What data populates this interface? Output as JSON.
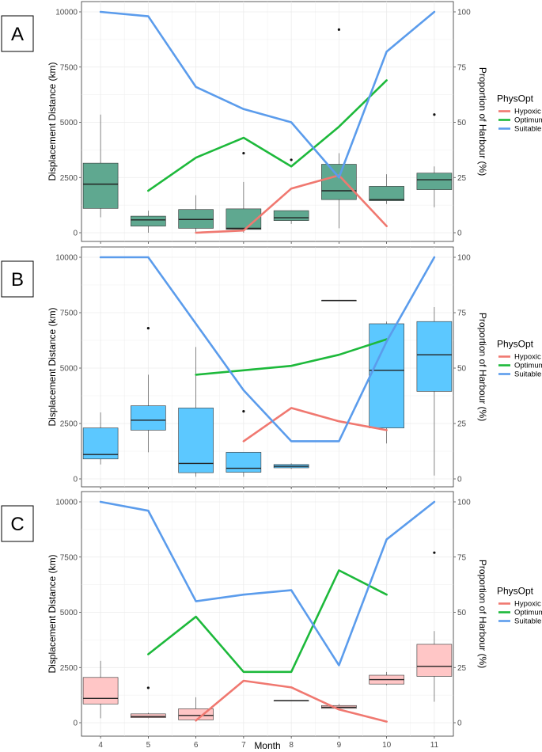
{
  "figure": {
    "x_axis_label": "Month",
    "legend_title": "PhysOpt",
    "series_colors": {
      "Hypoxic": "#F07870",
      "Optimum": "#1DB93B",
      "Suitable": "#5B9CEC"
    }
  },
  "chart_data": [
    {
      "panel_label": "A",
      "type": "boxplot_with_lines",
      "box_color": "#5FA890",
      "xlabel": "Month",
      "ylabel": "Displacement Distance (km)",
      "y2label": "Proportion of Harbour (%)",
      "ylim": [
        0,
        10000
      ],
      "y2lim": [
        0,
        100
      ],
      "x_ticks": [
        "4",
        "5",
        "6",
        "7",
        "8",
        "9",
        "10",
        "11"
      ],
      "y_ticks": [
        "0",
        "2500",
        "5000",
        "7500",
        "10000"
      ],
      "y2_ticks": [
        "0",
        "25",
        "50",
        "75",
        "100"
      ],
      "legend": [
        "Hypoxic",
        "Optimum",
        "Suitable"
      ],
      "boxes": [
        {
          "month": 4,
          "low": 700,
          "q1": 1100,
          "median": 2200,
          "q3": 3150,
          "high": 5350,
          "outliers": []
        },
        {
          "month": 5,
          "low": 0,
          "q1": 300,
          "median": 580,
          "q3": 750,
          "high": 1000,
          "outliers": []
        },
        {
          "month": 6,
          "low": 0,
          "q1": 200,
          "median": 600,
          "q3": 1050,
          "high": 1700,
          "outliers": []
        },
        {
          "month": 7,
          "low": 0,
          "q1": 150,
          "median": 200,
          "q3": 1080,
          "high": 2300,
          "outliers": [
            3600
          ]
        },
        {
          "month": 8,
          "low": 400,
          "q1": 550,
          "median": 680,
          "q3": 1000,
          "high": 1000,
          "outliers": [
            3300
          ]
        },
        {
          "month": 9,
          "low": 200,
          "q1": 1500,
          "median": 1900,
          "q3": 3100,
          "high": 3600,
          "outliers": [
            9200
          ]
        },
        {
          "month": 10,
          "low": 1300,
          "q1": 1450,
          "median": 1500,
          "q3": 2100,
          "high": 2650,
          "outliers": []
        },
        {
          "month": 11,
          "low": 1150,
          "q1": 1950,
          "median": 2400,
          "q3": 2700,
          "high": 3000,
          "outliers": [
            5350
          ]
        }
      ],
      "series": [
        {
          "name": "Hypoxic",
          "x": [
            6,
            7,
            8,
            9,
            10
          ],
          "values": [
            0,
            1,
            20,
            26,
            3
          ]
        },
        {
          "name": "Optimum",
          "x": [
            5,
            6,
            7,
            8,
            9,
            10
          ],
          "values": [
            19,
            34,
            43,
            30,
            48,
            69
          ]
        },
        {
          "name": "Suitable",
          "x": [
            4,
            5,
            6,
            7,
            8,
            9,
            10,
            11
          ],
          "values": [
            100,
            98,
            66,
            56,
            50,
            25,
            82,
            100
          ]
        }
      ]
    },
    {
      "panel_label": "B",
      "type": "boxplot_with_lines",
      "box_color": "#5CC8FF",
      "xlabel": "Month",
      "ylabel": "Displacement Distance (km)",
      "y2label": "Proportion of Harbour (%)",
      "ylim": [
        0,
        10000
      ],
      "y2lim": [
        0,
        100
      ],
      "x_ticks": [
        "4",
        "5",
        "6",
        "7",
        "8",
        "9",
        "10",
        "11"
      ],
      "y_ticks": [
        "0",
        "2500",
        "5000",
        "7500",
        "10000"
      ],
      "y2_ticks": [
        "0",
        "25",
        "50",
        "75",
        "100"
      ],
      "legend": [
        "Hypoxic",
        "Optimum",
        "Suitable"
      ],
      "boxes": [
        {
          "month": 4,
          "low": 650,
          "q1": 900,
          "median": 1100,
          "q3": 2300,
          "high": 3000,
          "outliers": []
        },
        {
          "month": 5,
          "low": 1200,
          "q1": 2200,
          "median": 2650,
          "q3": 3300,
          "high": 4700,
          "outliers": [
            6800
          ]
        },
        {
          "month": 6,
          "low": 100,
          "q1": 280,
          "median": 700,
          "q3": 3200,
          "high": 5950,
          "outliers": []
        },
        {
          "month": 7,
          "low": 100,
          "q1": 300,
          "median": 480,
          "q3": 1200,
          "high": 1200,
          "outliers": [
            3050
          ]
        },
        {
          "month": 8,
          "low": 450,
          "q1": 500,
          "median": 570,
          "q3": 650,
          "high": 700,
          "outliers": []
        },
        {
          "month": 9,
          "low": 8050,
          "q1": 8050,
          "median": 8050,
          "q3": 8050,
          "high": 8050,
          "outliers": []
        },
        {
          "month": 10,
          "low": 1600,
          "q1": 2300,
          "median": 4900,
          "q3": 7000,
          "high": 7100,
          "outliers": []
        },
        {
          "month": 11,
          "low": 150,
          "q1": 3950,
          "median": 5600,
          "q3": 7100,
          "high": 7750,
          "outliers": []
        }
      ],
      "series": [
        {
          "name": "Hypoxic",
          "x": [
            7,
            8,
            9,
            10
          ],
          "values": [
            17,
            32,
            26,
            22
          ]
        },
        {
          "name": "Optimum",
          "x": [
            6,
            7,
            8,
            9,
            10
          ],
          "values": [
            47,
            49,
            51,
            56,
            63
          ]
        },
        {
          "name": "Suitable",
          "x": [
            4,
            5,
            6,
            7,
            8,
            9,
            10,
            11
          ],
          "values": [
            100,
            100,
            70,
            40,
            17,
            17,
            62,
            100
          ]
        }
      ]
    },
    {
      "panel_label": "C",
      "type": "boxplot_with_lines",
      "box_color": "#FFC6C6",
      "xlabel": "Month",
      "ylabel": "Displacement Distance (km)",
      "y2label": "Proportion of Harbour (%)",
      "ylim": [
        0,
        10000
      ],
      "y2lim": [
        0,
        100
      ],
      "x_ticks": [
        "4",
        "5",
        "6",
        "7",
        "8",
        "9",
        "10",
        "11"
      ],
      "y_ticks": [
        "0",
        "2500",
        "5000",
        "7500",
        "10000"
      ],
      "y2_ticks": [
        "0",
        "25",
        "50",
        "75",
        "100"
      ],
      "legend": [
        "Hypoxic",
        "Optimum",
        "Suitable"
      ],
      "boxes": [
        {
          "month": 4,
          "low": 200,
          "q1": 850,
          "median": 1100,
          "q3": 2050,
          "high": 2800,
          "outliers": []
        },
        {
          "month": 5,
          "low": 200,
          "q1": 230,
          "median": 280,
          "q3": 400,
          "high": 450,
          "outliers": [
            1580
          ]
        },
        {
          "month": 6,
          "low": 50,
          "q1": 130,
          "median": 330,
          "q3": 630,
          "high": 1150,
          "outliers": []
        },
        {
          "month": 8,
          "low": 1000,
          "q1": 1000,
          "median": 1000,
          "q3": 1000,
          "high": 1000,
          "outliers": []
        },
        {
          "month": 9,
          "low": 600,
          "q1": 650,
          "median": 700,
          "q3": 780,
          "high": 850,
          "outliers": []
        },
        {
          "month": 10,
          "low": 1700,
          "q1": 1750,
          "median": 1950,
          "q3": 2150,
          "high": 2300,
          "outliers": []
        },
        {
          "month": 11,
          "low": 950,
          "q1": 2100,
          "median": 2550,
          "q3": 3550,
          "high": 4150,
          "outliers": [
            7700
          ]
        }
      ],
      "series": [
        {
          "name": "Hypoxic",
          "x": [
            6,
            7,
            8,
            9,
            10
          ],
          "values": [
            1,
            19,
            16,
            6,
            0.5
          ]
        },
        {
          "name": "Optimum",
          "x": [
            5,
            6,
            7,
            8,
            9,
            10
          ],
          "values": [
            31,
            48,
            23,
            23,
            69,
            58
          ]
        },
        {
          "name": "Suitable",
          "x": [
            4,
            5,
            6,
            7,
            8,
            9,
            10,
            11
          ],
          "values": [
            100,
            96,
            55,
            58,
            60,
            26,
            83,
            100
          ]
        }
      ]
    }
  ]
}
